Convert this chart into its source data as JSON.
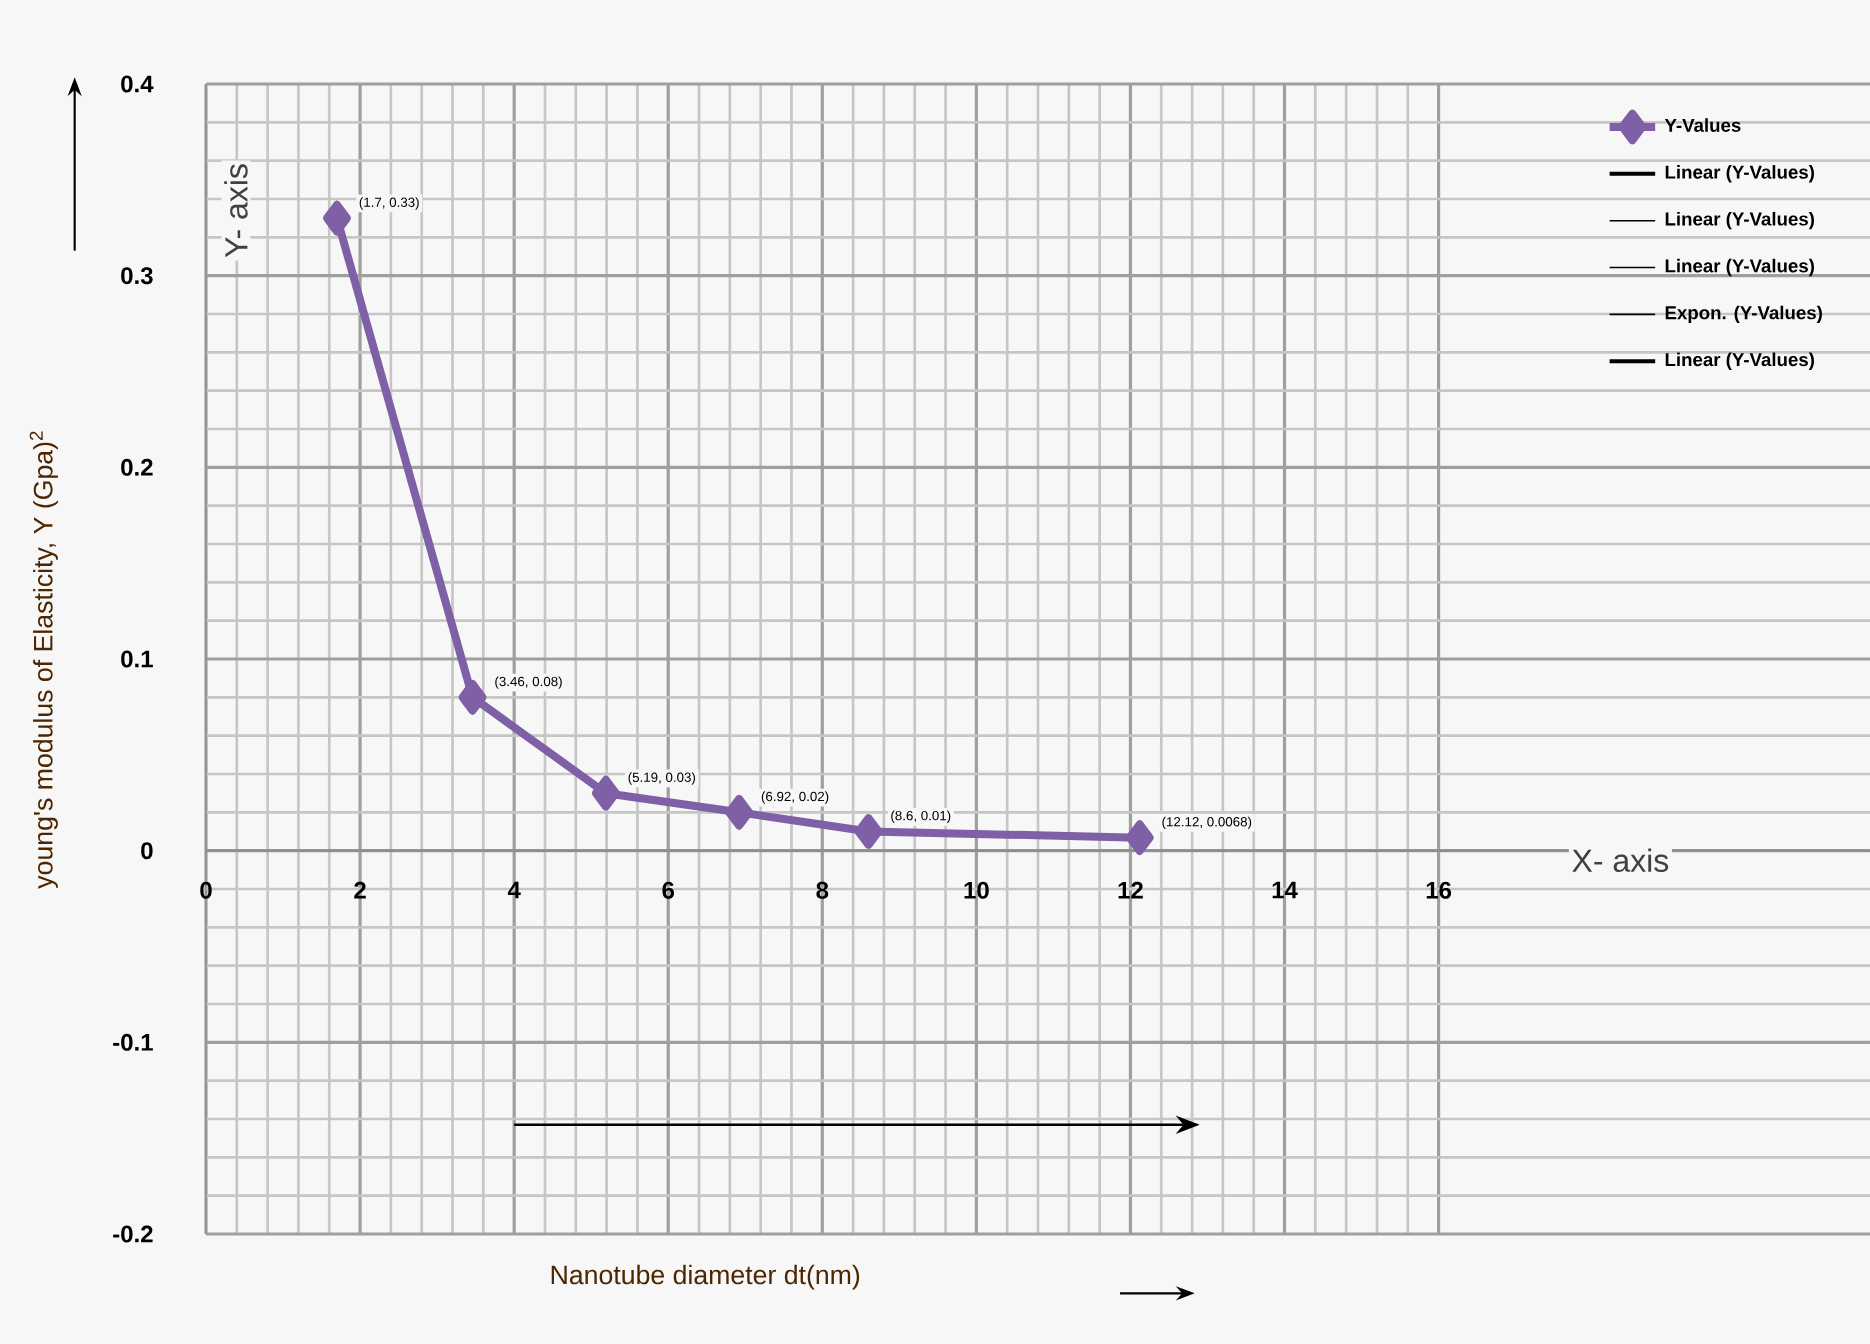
{
  "chart_data": {
    "type": "line",
    "xlabel": "Nanotube diameter dt(nm)",
    "ylabel": "young's modulus of Elasticity, Y (Gpa)$^{2}$",
    "xlim": [
      0,
      21.6
    ],
    "ylim": [
      -0.2,
      0.4
    ],
    "xticks": [
      0,
      2,
      4,
      6,
      8,
      10,
      12,
      14,
      16
    ],
    "yticks": [
      -0.2,
      -0.1,
      0,
      0.1,
      0.2,
      0.3,
      0.4
    ],
    "grid": true,
    "legend": "top right",
    "marker": "diamond",
    "line_style": "solid",
    "series": [
      {
        "name": "Y-Values",
        "color": "#7f5fa5",
        "x": [
          1.7,
          3.46,
          5.19,
          6.92,
          8.6,
          12.12
        ],
        "values": [
          0.33,
          0.08,
          0.03,
          0.02,
          0.01,
          0.0068
        ],
        "value_labels": [
          "(1.7, 0.33)",
          "(3.46, 0.08)",
          "(5.19, 0.03)",
          "(6.92, 0.02)",
          "(8.6, 0.01)",
          "(12.12, 0.0068)"
        ]
      },
      {
        "name": "Linear (Y-Values)",
        "color": "#000000",
        "values": [
          null,
          null,
          null,
          null,
          null,
          null
        ]
      },
      {
        "name": "Linear (Y-Values)",
        "color": "#000000",
        "values": [
          null,
          null,
          null,
          null,
          null,
          null
        ]
      },
      {
        "name": "Linear (Y-Values)",
        "color": "#000000",
        "values": [
          null,
          null,
          null,
          null,
          null,
          null
        ]
      },
      {
        "name": "Expon. (Y-Values)",
        "color": "#000000",
        "values": [
          null,
          null,
          null,
          null,
          null,
          null
        ]
      },
      {
        "name": "Linear (Y-Values)",
        "color": "#000000",
        "values": [
          null,
          null,
          null,
          null,
          null,
          null
        ]
      }
    ],
    "annotations": [
      "X- axis",
      "Y- axis"
    ]
  }
}
